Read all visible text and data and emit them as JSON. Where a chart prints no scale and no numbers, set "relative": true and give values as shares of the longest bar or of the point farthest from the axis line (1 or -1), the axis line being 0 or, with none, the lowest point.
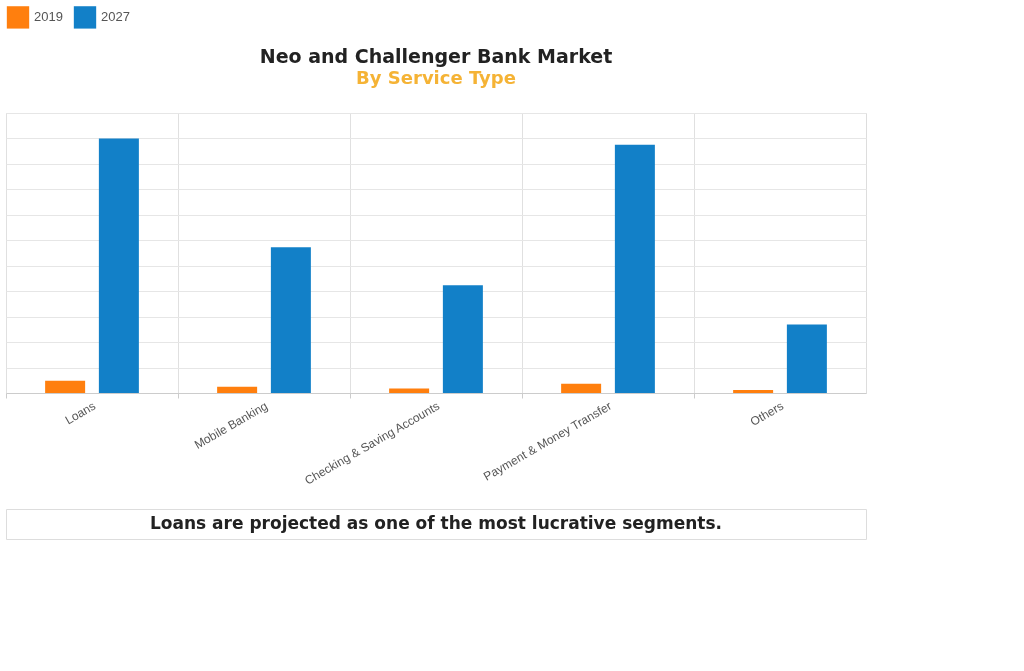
{
  "chart_data": {
    "type": "bar",
    "title": "Neo and Challenger Bank Market",
    "subtitle": "By Service Type",
    "categories": [
      "Loans",
      "Mobile Banking",
      "Checking & Saving Accounts",
      "Payment & Money Transfer",
      "Others"
    ],
    "series": [
      {
        "name": "2019",
        "color": "#ff7f0e",
        "values": [
          0.048,
          0.025,
          0.018,
          0.036,
          0.012
        ]
      },
      {
        "name": "2027",
        "color": "#1280c8",
        "values": [
          1,
          0.573,
          0.423,
          0.975,
          0.269
        ]
      }
    ],
    "relative": true,
    "grid": true,
    "legend": "top",
    "annotations": [
      "Loans are projected as one of the most lucrative segments."
    ]
  }
}
